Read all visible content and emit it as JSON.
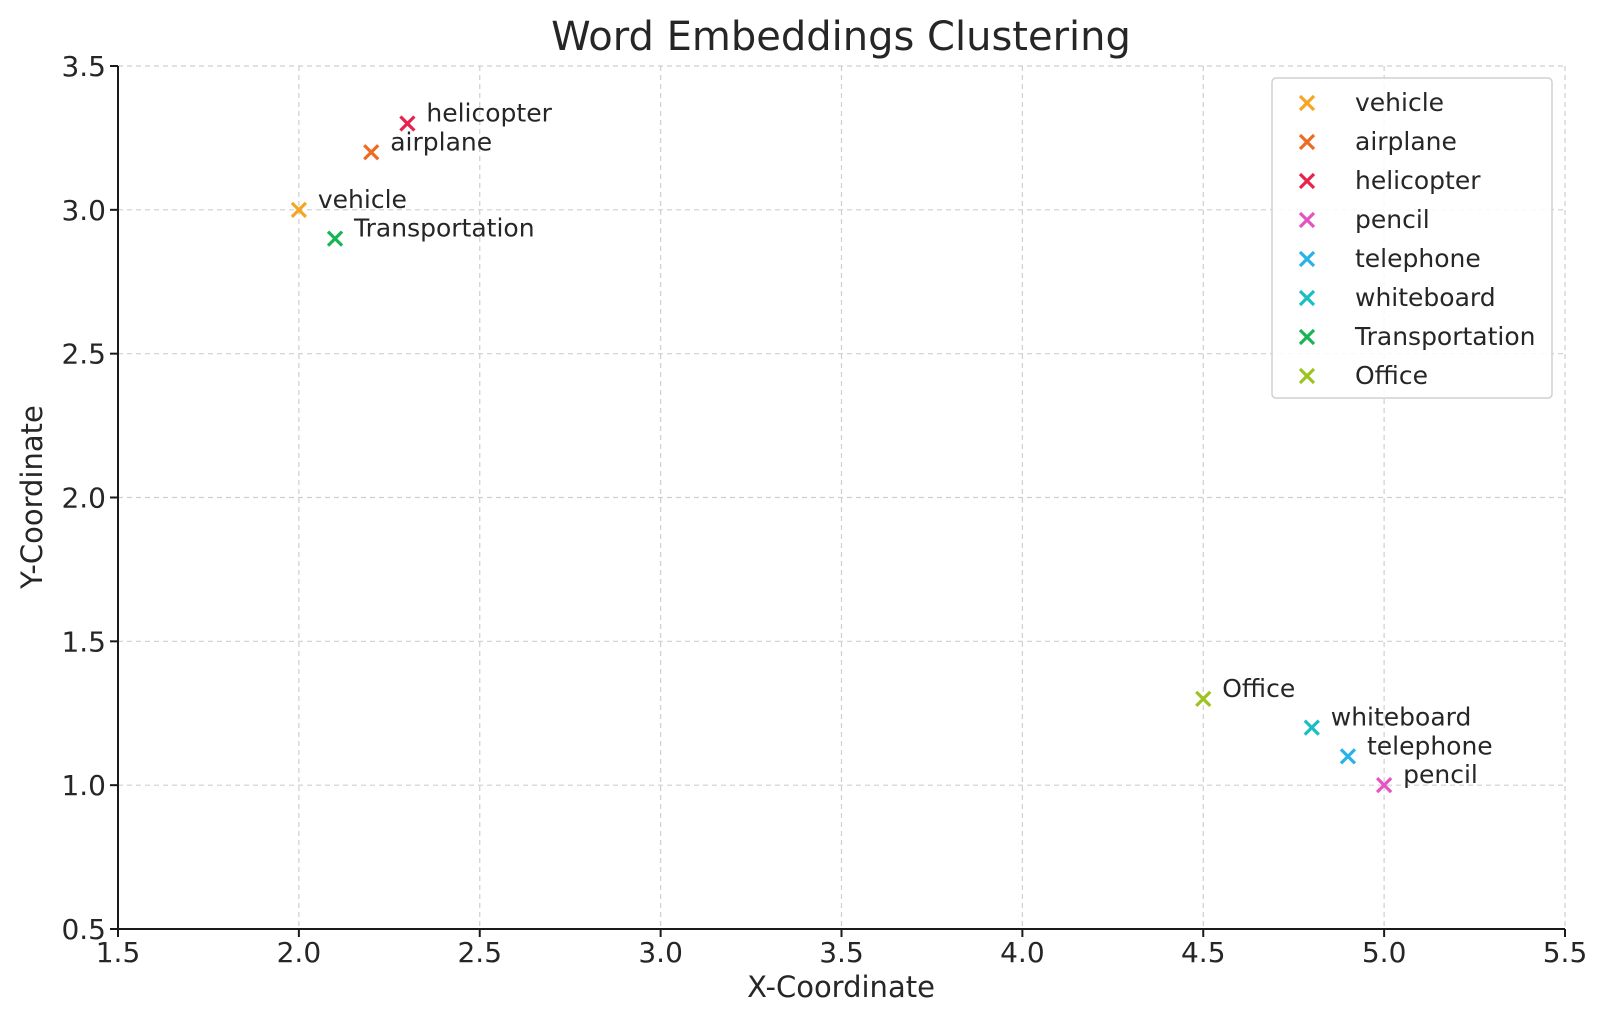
{
  "chart_data": {
    "type": "scatter",
    "title": "Word Embeddings Clustering",
    "xlabel": "X-Coordinate",
    "ylabel": "Y-Coordinate",
    "xlim": [
      1.5,
      5.5
    ],
    "ylim": [
      0.5,
      3.5
    ],
    "x_ticks": [
      1.5,
      2.0,
      2.5,
      3.0,
      3.5,
      4.0,
      4.5,
      5.0,
      5.5
    ],
    "y_ticks": [
      0.5,
      1.0,
      1.5,
      2.0,
      2.5,
      3.0,
      3.5
    ],
    "x_tick_labels": [
      "1.5",
      "2.0",
      "2.5",
      "3.0",
      "3.5",
      "4.0",
      "4.5",
      "5.0",
      "5.5"
    ],
    "y_tick_labels": [
      "0.5",
      "1.0",
      "1.5",
      "2.0",
      "2.5",
      "3.0",
      "3.5"
    ],
    "grid": true,
    "marker": "x",
    "legend_position": "top-right",
    "series": [
      {
        "name": "vehicle",
        "x": 2.0,
        "y": 3.0,
        "color": "#f5a623"
      },
      {
        "name": "airplane",
        "x": 2.2,
        "y": 3.2,
        "color": "#ee6b22"
      },
      {
        "name": "helicopter",
        "x": 2.3,
        "y": 3.3,
        "color": "#e8224b"
      },
      {
        "name": "pencil",
        "x": 5.0,
        "y": 1.0,
        "color": "#e653c0"
      },
      {
        "name": "telephone",
        "x": 4.9,
        "y": 1.1,
        "color": "#28b2ea"
      },
      {
        "name": "whiteboard",
        "x": 4.8,
        "y": 1.2,
        "color": "#17bfc2"
      },
      {
        "name": "Transportation",
        "x": 2.1,
        "y": 2.9,
        "color": "#18b554"
      },
      {
        "name": "Office",
        "x": 4.5,
        "y": 1.3,
        "color": "#9dc31e"
      }
    ]
  }
}
